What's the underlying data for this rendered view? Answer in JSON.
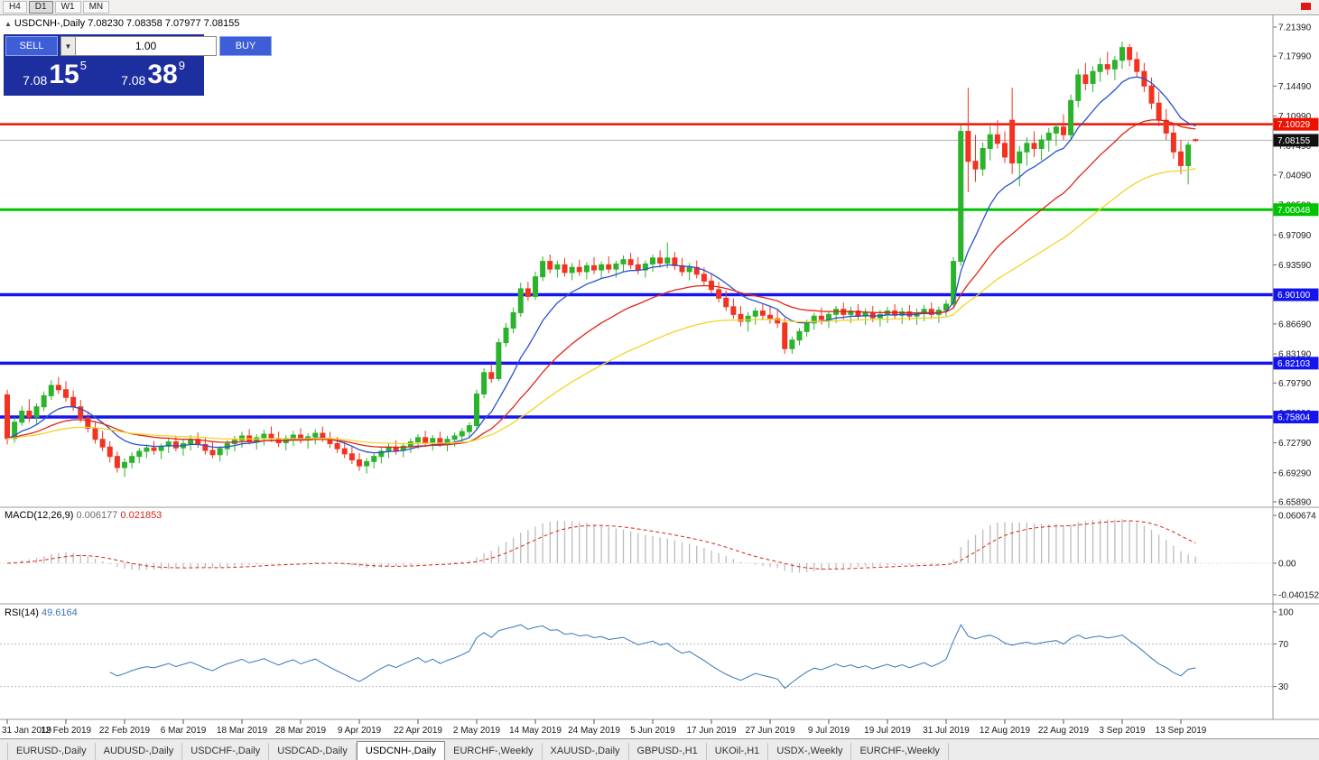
{
  "toolbar": {
    "timeframes": [
      "H4",
      "D1",
      "W1",
      "MN"
    ],
    "active": "D1"
  },
  "chart_info": {
    "collapse_icon": "▲",
    "symbol_line": "USDCNH-,Daily  7.08230 7.08358 7.07977 7.08155"
  },
  "trade_panel": {
    "sell_label": "SELL",
    "buy_label": "BUY",
    "volume": "1.00",
    "sell_price": {
      "prefix": "7.08",
      "big": "15",
      "sup": "5"
    },
    "buy_price": {
      "prefix": "7.08",
      "big": "38",
      "sup": "9"
    }
  },
  "tabs": {
    "items": [
      "EURUSD-,Daily",
      "AUDUSD-,Daily",
      "USDCHF-,Daily",
      "USDCAD-,Daily",
      "USDCNH-,Daily",
      "EURCHF-,Weekly",
      "XAUUSD-,Daily",
      "GBPUSD-,H1",
      "UKOil-,H1",
      "USDX-,Weekly",
      "EURCHF-,Weekly"
    ],
    "active_index": 4
  },
  "chart_data": {
    "type": "candlestick",
    "symbol": "USDCNH-,Daily",
    "colors": {
      "up": "#2bb32b",
      "down": "#f23321"
    },
    "price_axis": {
      "max": 7.2139,
      "min": 6.6589,
      "labels": [
        7.2139,
        7.1799,
        7.1449,
        7.1099,
        7.0749,
        7.0409,
        7.0059,
        6.9709,
        6.9359,
        6.9009,
        6.8669,
        6.8319,
        6.7979,
        6.7629,
        6.7279,
        6.6929,
        6.6589
      ]
    },
    "hlines": [
      {
        "value": 7.10029,
        "color": "#ee1100",
        "width": 2.5
      },
      {
        "value": 7.00048,
        "color": "#00c400",
        "width": 3
      },
      {
        "value": 6.901,
        "color": "#1414f0",
        "width": 3.5
      },
      {
        "value": 6.82103,
        "color": "#1414f0",
        "width": 3.5
      },
      {
        "value": 6.75804,
        "color": "#1414f0",
        "width": 3.5
      }
    ],
    "current_price": 7.08155,
    "ma": [
      {
        "period": 10,
        "color": "#2a52cc"
      },
      {
        "period": 25,
        "color": "#e02515"
      },
      {
        "period": 50,
        "color": "#f2d427"
      }
    ],
    "dates": {
      "step": 8,
      "labels": [
        "31 Jan 2019",
        "12 Feb 2019",
        "22 Feb 2019",
        "6 Mar 2019",
        "18 Mar 2019",
        "28 Mar 2019",
        "9 Apr 2019",
        "22 Apr 2019",
        "2 May 2019",
        "14 May 2019",
        "24 May 2019",
        "5 Jun 2019",
        "17 Jun 2019",
        "27 Jun 2019",
        "9 Jul 2019",
        "19 Jul 2019",
        "31 Jul 2019",
        "12 Aug 2019",
        "22 Aug 2019",
        "3 Sep 2019",
        "13 Sep 2019"
      ]
    },
    "macd": {
      "label": "MACD(12,26,9)",
      "value_main": "0.006177",
      "value_signal": "0.021853",
      "fast": 12,
      "slow": 26,
      "signal": 9,
      "axis_values": [
        0.060674,
        0,
        -0.040152
      ],
      "axis_labels": [
        "0.060674",
        "0.00",
        "-0.040152"
      ],
      "hist_color": "#bcbcbc",
      "signal_color": "#d42616"
    },
    "rsi": {
      "label": "RSI(14)",
      "value": "49.6164",
      "period": 14,
      "levels": [
        100,
        70,
        30
      ],
      "color": "#3a76b8"
    },
    "candles": [
      [
        6.784,
        6.79,
        6.726,
        6.733
      ],
      [
        6.733,
        6.758,
        6.728,
        6.752
      ],
      [
        6.752,
        6.771,
        6.748,
        6.765
      ],
      [
        6.765,
        6.779,
        6.752,
        6.758
      ],
      [
        6.758,
        6.774,
        6.75,
        6.77
      ],
      [
        6.77,
        6.788,
        6.765,
        6.783
      ],
      [
        6.783,
        6.801,
        6.778,
        6.795
      ],
      [
        6.795,
        6.805,
        6.785,
        6.79
      ],
      [
        6.79,
        6.8,
        6.776,
        6.781
      ],
      [
        6.781,
        6.789,
        6.765,
        6.77
      ],
      [
        6.77,
        6.778,
        6.752,
        6.757
      ],
      [
        6.757,
        6.764,
        6.74,
        6.745
      ],
      [
        6.745,
        6.752,
        6.727,
        6.732
      ],
      [
        6.732,
        6.742,
        6.718,
        6.723
      ],
      [
        6.723,
        6.73,
        6.705,
        6.712
      ],
      [
        6.712,
        6.718,
        6.693,
        6.699
      ],
      [
        6.699,
        6.71,
        6.688,
        6.705
      ],
      [
        6.705,
        6.717,
        6.698,
        6.712
      ],
      [
        6.712,
        6.722,
        6.704,
        6.718
      ],
      [
        6.718,
        6.726,
        6.71,
        6.722
      ],
      [
        6.722,
        6.73,
        6.714,
        6.719
      ],
      [
        6.719,
        6.727,
        6.709,
        6.724
      ],
      [
        6.724,
        6.734,
        6.716,
        6.729
      ],
      [
        6.729,
        6.736,
        6.718,
        6.722
      ],
      [
        6.722,
        6.731,
        6.713,
        6.727
      ],
      [
        6.727,
        6.737,
        6.719,
        6.732
      ],
      [
        6.732,
        6.74,
        6.722,
        6.726
      ],
      [
        6.726,
        6.734,
        6.714,
        6.719
      ],
      [
        6.719,
        6.729,
        6.71,
        6.714
      ],
      [
        6.714,
        6.724,
        6.706,
        6.721
      ],
      [
        6.721,
        6.731,
        6.713,
        6.727
      ],
      [
        6.727,
        6.736,
        6.718,
        6.731
      ],
      [
        6.731,
        6.741,
        6.722,
        6.736
      ],
      [
        6.736,
        6.744,
        6.726,
        6.73
      ],
      [
        6.73,
        6.738,
        6.72,
        6.734
      ],
      [
        6.734,
        6.743,
        6.725,
        6.738
      ],
      [
        6.738,
        6.747,
        6.729,
        6.733
      ],
      [
        6.733,
        6.741,
        6.723,
        6.728
      ],
      [
        6.728,
        6.737,
        6.719,
        6.733
      ],
      [
        6.733,
        6.742,
        6.724,
        6.737
      ],
      [
        6.737,
        6.745,
        6.727,
        6.731
      ],
      [
        6.731,
        6.739,
        6.721,
        6.735
      ],
      [
        6.735,
        6.744,
        6.726,
        6.739
      ],
      [
        6.739,
        6.747,
        6.729,
        6.733
      ],
      [
        6.733,
        6.741,
        6.722,
        6.727
      ],
      [
        6.727,
        6.735,
        6.716,
        6.721
      ],
      [
        6.721,
        6.729,
        6.71,
        6.715
      ],
      [
        6.715,
        6.723,
        6.703,
        6.708
      ],
      [
        6.708,
        6.716,
        6.695,
        6.701
      ],
      [
        6.701,
        6.71,
        6.692,
        6.706
      ],
      [
        6.706,
        6.716,
        6.698,
        6.712
      ],
      [
        6.712,
        6.722,
        6.704,
        6.718
      ],
      [
        6.718,
        6.727,
        6.71,
        6.723
      ],
      [
        6.723,
        6.731,
        6.714,
        6.719
      ],
      [
        6.719,
        6.728,
        6.711,
        6.724
      ],
      [
        6.724,
        6.733,
        6.716,
        6.729
      ],
      [
        6.729,
        6.738,
        6.721,
        6.734
      ],
      [
        6.734,
        6.742,
        6.724,
        6.728
      ],
      [
        6.728,
        6.737,
        6.719,
        6.733
      ],
      [
        6.733,
        6.741,
        6.723,
        6.727
      ],
      [
        6.727,
        6.736,
        6.718,
        6.732
      ],
      [
        6.732,
        6.74,
        6.723,
        6.736
      ],
      [
        6.736,
        6.745,
        6.728,
        6.741
      ],
      [
        6.741,
        6.752,
        6.734,
        6.748
      ],
      [
        6.748,
        6.79,
        6.744,
        6.785
      ],
      [
        6.785,
        6.815,
        6.78,
        6.81
      ],
      [
        6.81,
        6.82,
        6.798,
        6.803
      ],
      [
        6.803,
        6.85,
        6.8,
        6.845
      ],
      [
        6.845,
        6.868,
        6.84,
        6.862
      ],
      [
        6.862,
        6.886,
        6.856,
        6.88
      ],
      [
        6.88,
        6.915,
        6.875,
        6.908
      ],
      [
        6.908,
        6.916,
        6.894,
        6.899
      ],
      [
        6.899,
        6.928,
        6.895,
        6.922
      ],
      [
        6.922,
        6.946,
        6.917,
        6.94
      ],
      [
        6.94,
        6.948,
        6.926,
        6.931
      ],
      [
        6.931,
        6.941,
        6.921,
        6.936
      ],
      [
        6.936,
        6.944,
        6.922,
        6.927
      ],
      [
        6.927,
        6.938,
        6.918,
        6.933
      ],
      [
        6.933,
        6.942,
        6.923,
        6.928
      ],
      [
        6.928,
        6.939,
        6.919,
        6.935
      ],
      [
        6.935,
        6.945,
        6.925,
        6.93
      ],
      [
        6.93,
        6.94,
        6.92,
        6.936
      ],
      [
        6.936,
        6.946,
        6.926,
        6.931
      ],
      [
        6.931,
        6.941,
        6.921,
        6.937
      ],
      [
        6.937,
        6.947,
        6.927,
        6.942
      ],
      [
        6.942,
        6.95,
        6.931,
        6.936
      ],
      [
        6.936,
        6.945,
        6.925,
        6.93
      ],
      [
        6.93,
        6.941,
        6.921,
        6.937
      ],
      [
        6.937,
        6.948,
        6.928,
        6.944
      ],
      [
        6.944,
        6.953,
        6.933,
        6.938
      ],
      [
        6.938,
        6.962,
        6.932,
        6.944
      ],
      [
        6.944,
        6.951,
        6.93,
        6.935
      ],
      [
        6.935,
        6.944,
        6.923,
        6.928
      ],
      [
        6.928,
        6.938,
        6.918,
        6.933
      ],
      [
        6.933,
        6.941,
        6.92,
        6.925
      ],
      [
        6.925,
        6.933,
        6.912,
        6.917
      ],
      [
        6.917,
        6.925,
        6.902,
        6.907
      ],
      [
        6.907,
        6.916,
        6.892,
        6.897
      ],
      [
        6.897,
        6.906,
        6.882,
        6.887
      ],
      [
        6.887,
        6.897,
        6.873,
        6.878
      ],
      [
        6.878,
        6.888,
        6.864,
        6.87
      ],
      [
        6.87,
        6.881,
        6.858,
        6.876
      ],
      [
        6.876,
        6.886,
        6.866,
        6.882
      ],
      [
        6.882,
        6.891,
        6.871,
        6.877
      ],
      [
        6.877,
        6.887,
        6.867,
        6.873
      ],
      [
        6.873,
        6.883,
        6.862,
        6.868
      ],
      [
        6.868,
        6.874,
        6.832,
        6.838
      ],
      [
        6.838,
        6.852,
        6.832,
        6.848
      ],
      [
        6.848,
        6.862,
        6.842,
        6.858
      ],
      [
        6.858,
        6.872,
        6.852,
        6.868
      ],
      [
        6.868,
        6.88,
        6.86,
        6.876
      ],
      [
        6.876,
        6.886,
        6.866,
        6.872
      ],
      [
        6.872,
        6.882,
        6.862,
        6.878
      ],
      [
        6.878,
        6.888,
        6.868,
        6.884
      ],
      [
        6.884,
        6.892,
        6.872,
        6.878
      ],
      [
        6.878,
        6.887,
        6.868,
        6.882
      ],
      [
        6.882,
        6.89,
        6.871,
        6.876
      ],
      [
        6.876,
        6.885,
        6.866,
        6.88
      ],
      [
        6.88,
        6.888,
        6.869,
        6.874
      ],
      [
        6.874,
        6.883,
        6.864,
        6.878
      ],
      [
        6.878,
        6.887,
        6.868,
        6.882
      ],
      [
        6.882,
        6.89,
        6.872,
        6.877
      ],
      [
        6.877,
        6.886,
        6.867,
        6.881
      ],
      [
        6.881,
        6.889,
        6.871,
        6.876
      ],
      [
        6.876,
        6.885,
        6.866,
        6.88
      ],
      [
        6.88,
        6.889,
        6.87,
        6.884
      ],
      [
        6.884,
        6.892,
        6.873,
        6.878
      ],
      [
        6.878,
        6.887,
        6.868,
        6.883
      ],
      [
        6.883,
        6.895,
        6.876,
        6.89
      ],
      [
        6.89,
        6.945,
        6.885,
        6.94
      ],
      [
        6.94,
        7.099,
        6.935,
        7.092
      ],
      [
        7.092,
        7.143,
        7.021,
        7.057
      ],
      [
        7.057,
        7.088,
        7.033,
        7.048
      ],
      [
        7.048,
        7.079,
        7.04,
        7.072
      ],
      [
        7.072,
        7.098,
        7.058,
        7.088
      ],
      [
        7.088,
        7.105,
        7.072,
        7.078
      ],
      [
        7.078,
        7.092,
        7.055,
        7.062
      ],
      [
        7.105,
        7.143,
        7.042,
        7.055
      ],
      [
        7.055,
        7.075,
        7.028,
        7.068
      ],
      [
        7.068,
        7.085,
        7.052,
        7.078
      ],
      [
        7.078,
        7.092,
        7.062,
        7.072
      ],
      [
        7.072,
        7.088,
        7.058,
        7.082
      ],
      [
        7.082,
        7.096,
        7.068,
        7.09
      ],
      [
        7.09,
        7.102,
        7.075,
        7.097
      ],
      [
        7.097,
        7.112,
        7.082,
        7.088
      ],
      [
        7.088,
        7.135,
        7.082,
        7.128
      ],
      [
        7.128,
        7.165,
        7.12,
        7.158
      ],
      [
        7.158,
        7.172,
        7.14,
        7.148
      ],
      [
        7.148,
        7.168,
        7.138,
        7.162
      ],
      [
        7.162,
        7.178,
        7.15,
        7.17
      ],
      [
        7.17,
        7.185,
        7.158,
        7.165
      ],
      [
        7.165,
        7.18,
        7.152,
        7.175
      ],
      [
        7.175,
        7.197,
        7.165,
        7.19
      ],
      [
        7.19,
        7.194,
        7.168,
        7.176
      ],
      [
        7.176,
        7.185,
        7.155,
        7.162
      ],
      [
        7.162,
        7.172,
        7.138,
        7.145
      ],
      [
        7.145,
        7.155,
        7.118,
        7.125
      ],
      [
        7.125,
        7.138,
        7.098,
        7.105
      ],
      [
        7.105,
        7.118,
        7.082,
        7.09
      ],
      [
        7.09,
        7.1,
        7.06,
        7.068
      ],
      [
        7.068,
        7.082,
        7.042,
        7.052
      ],
      [
        7.052,
        7.08,
        7.03,
        7.076
      ],
      [
        7.0823,
        7.08358,
        7.07977,
        7.08155
      ]
    ]
  }
}
